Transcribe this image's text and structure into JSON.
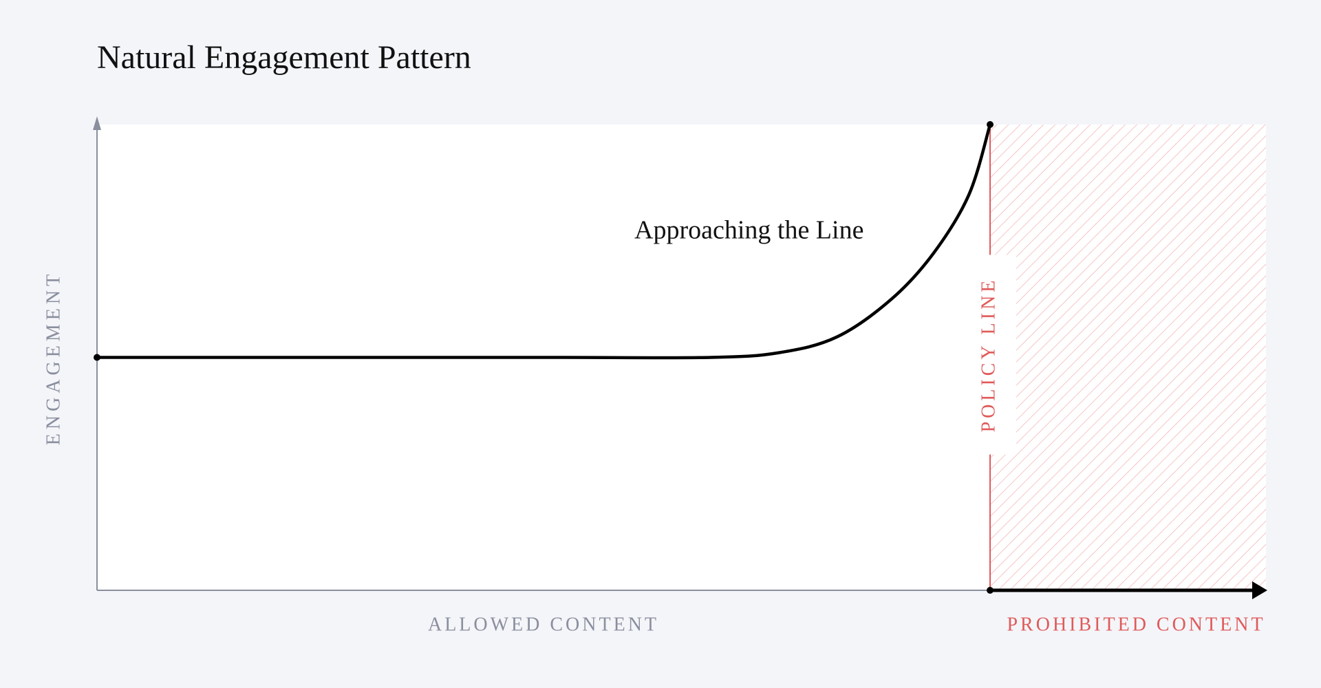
{
  "chart_data": {
    "type": "line",
    "title": "Natural Engagement Pattern",
    "y_label": "ENGAGEMENT",
    "x_label": "ALLOWED CONTENT",
    "x_label_right": "PROHIBITED CONTENT",
    "annotation": "Approaching the Line",
    "policy_line": {
      "label": "POLICY LINE",
      "x": 76.4
    },
    "xlim": [
      0,
      100
    ],
    "ylim": [
      0,
      100
    ],
    "x": [
      0,
      10,
      20,
      30,
      40,
      52.5,
      58.3,
      63.3,
      68,
      71.6,
      74.6,
      76.4
    ],
    "values": [
      50,
      50,
      50,
      50,
      50,
      50,
      51,
      54.4,
      62.6,
      72.5,
      85,
      100
    ],
    "color": "#000000",
    "policy_color": "#e05a5a"
  }
}
